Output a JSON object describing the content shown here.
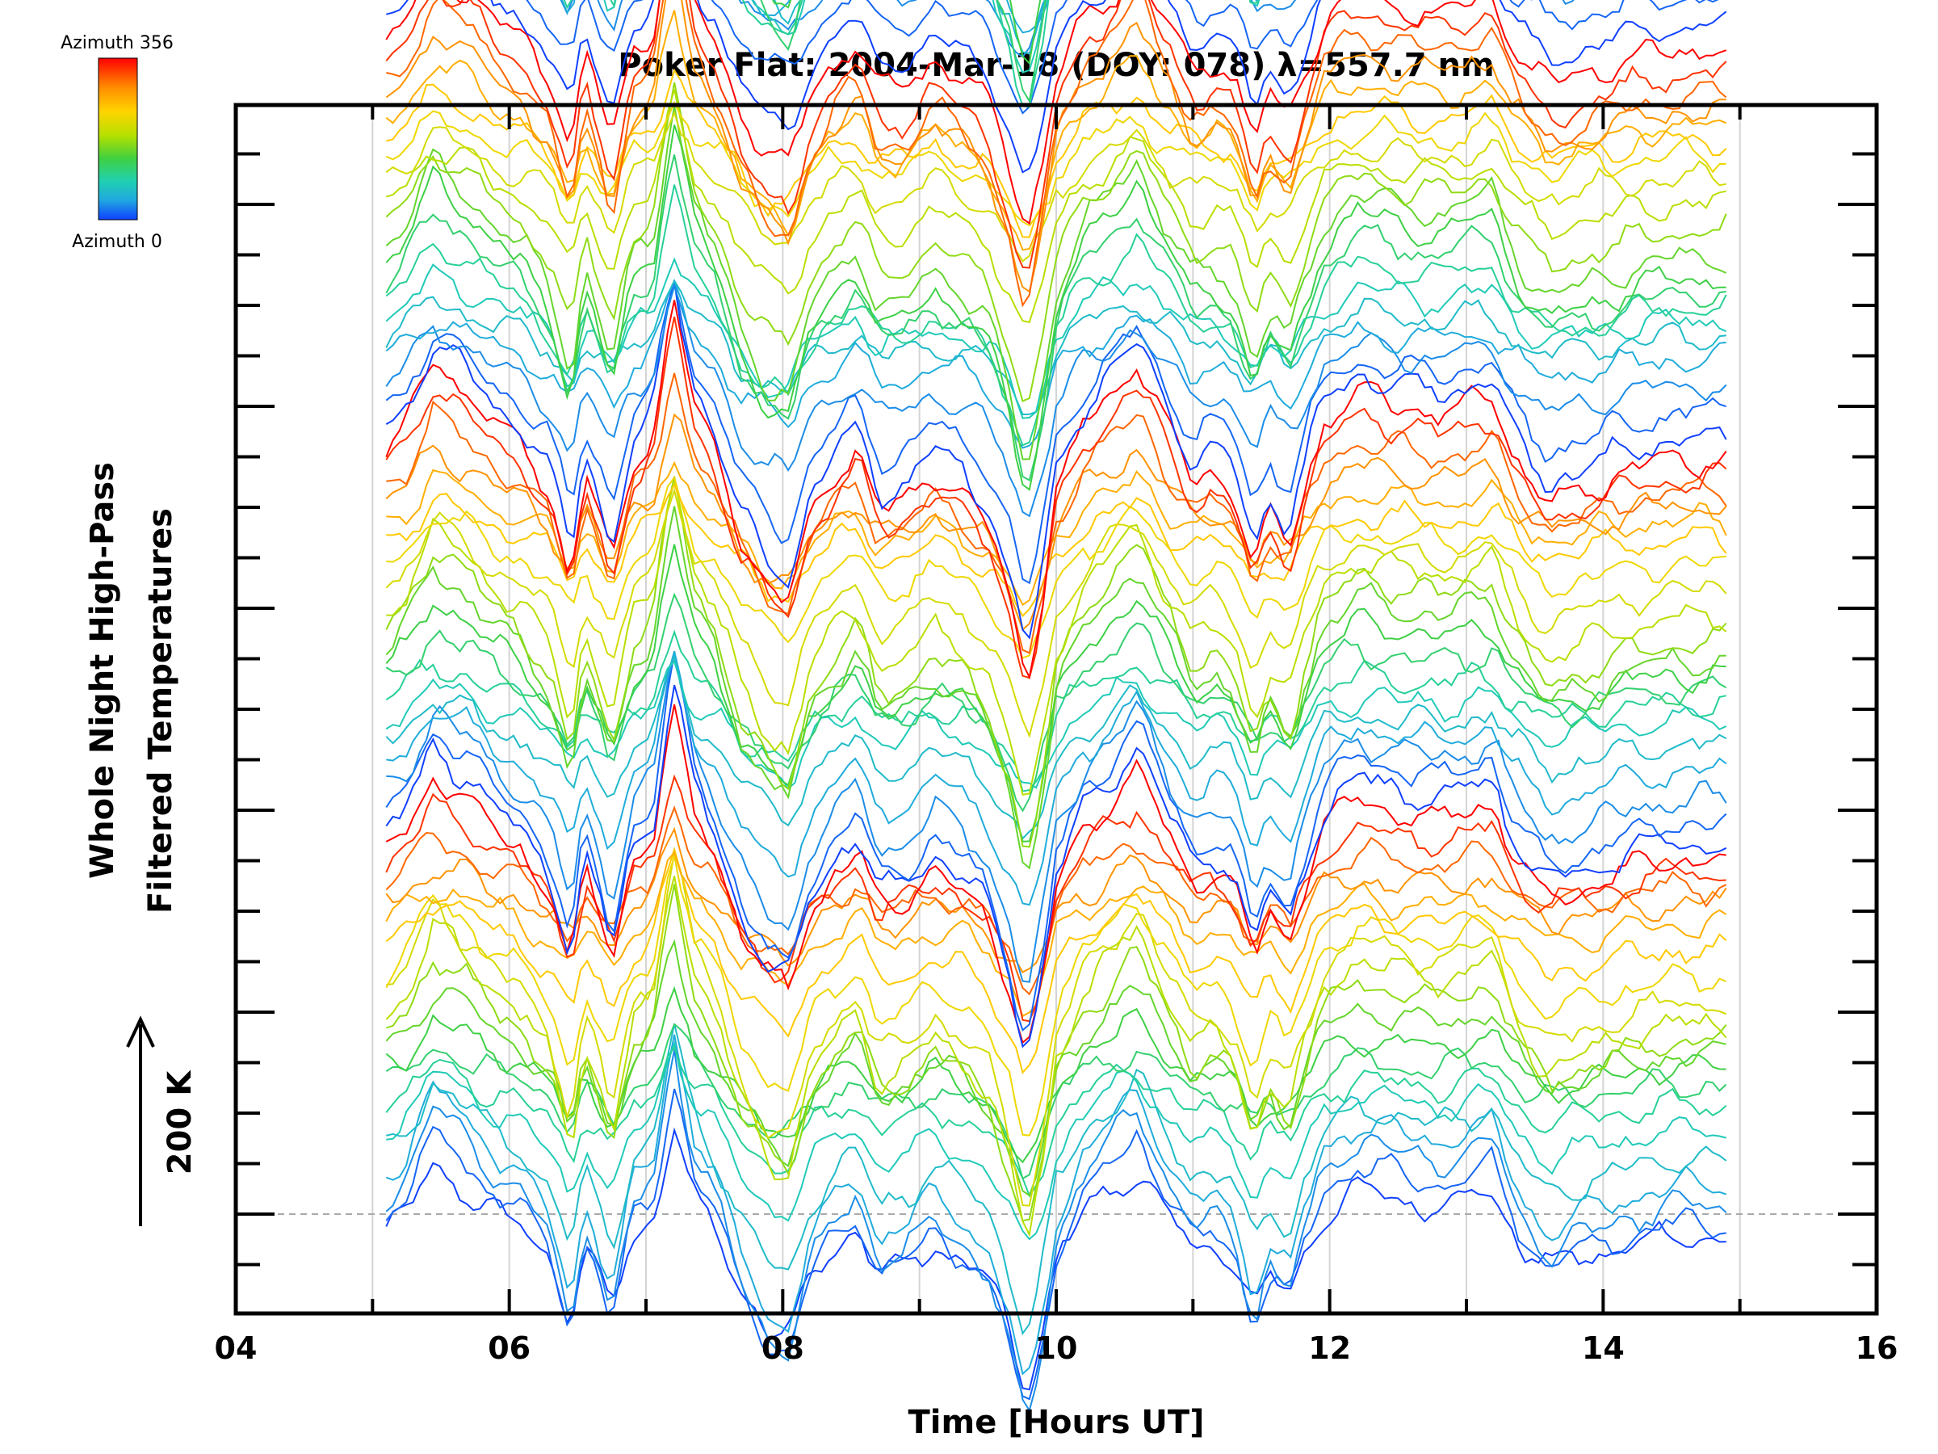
{
  "chart_data": {
    "type": "line",
    "title": "Poker Flat: 2004-Mar-18 (DOY: 078) λ=557.7 nm",
    "xlabel": "Time [Hours UT]",
    "ylabel_line1": "Whole Night High-Pass",
    "ylabel_line2": "Filtered Temperatures",
    "xlim": [
      4,
      16
    ],
    "x_ticks": [
      "04",
      "06",
      "08",
      "10",
      "12",
      "14",
      "16"
    ],
    "x_range_data": [
      5.1,
      14.9
    ],
    "scale_bar": {
      "label": "200 K",
      "value_k": 200
    },
    "colorbar": {
      "top_label": "Azimuth 356",
      "bottom_label": "Azimuth 0",
      "colors": [
        "#ff0000",
        "#ff8c00",
        "#ffd400",
        "#b4e000",
        "#40d040",
        "#20d0b0",
        "#20a8e0",
        "#1040ff"
      ]
    },
    "stack": {
      "groups": 4,
      "traces_per_group": 20,
      "group_offset_k": 400,
      "trace_offset_k": 20
    },
    "base_profile": {
      "x": [
        5.1,
        5.25,
        5.45,
        5.7,
        5.9,
        6.1,
        6.3,
        6.45,
        6.55,
        6.65,
        6.75,
        6.9,
        7.05,
        7.2,
        7.35,
        7.5,
        7.7,
        7.9,
        8.05,
        8.2,
        8.4,
        8.55,
        8.7,
        8.9,
        9.1,
        9.3,
        9.5,
        9.65,
        9.78,
        9.88,
        10.0,
        10.2,
        10.4,
        10.6,
        10.8,
        11.0,
        11.15,
        11.3,
        11.45,
        11.55,
        11.7,
        11.8,
        11.95,
        12.2,
        12.5,
        12.8,
        13.0,
        13.2,
        13.3,
        13.45,
        13.6,
        13.8,
        14.0,
        14.2,
        14.5,
        14.75,
        14.9
      ],
      "y_k": [
        -20,
        0,
        60,
        30,
        0,
        -20,
        -60,
        -140,
        -40,
        -80,
        -130,
        -30,
        -10,
        120,
        20,
        -20,
        -100,
        -150,
        -160,
        -80,
        -40,
        -20,
        -80,
        -70,
        -40,
        -60,
        -90,
        -150,
        -230,
        -170,
        -60,
        0,
        30,
        60,
        0,
        -50,
        -40,
        -60,
        -130,
        -80,
        -110,
        -60,
        0,
        30,
        20,
        10,
        20,
        30,
        -10,
        -50,
        -70,
        -60,
        -50,
        -40,
        -30,
        -30,
        -30
      ]
    }
  }
}
